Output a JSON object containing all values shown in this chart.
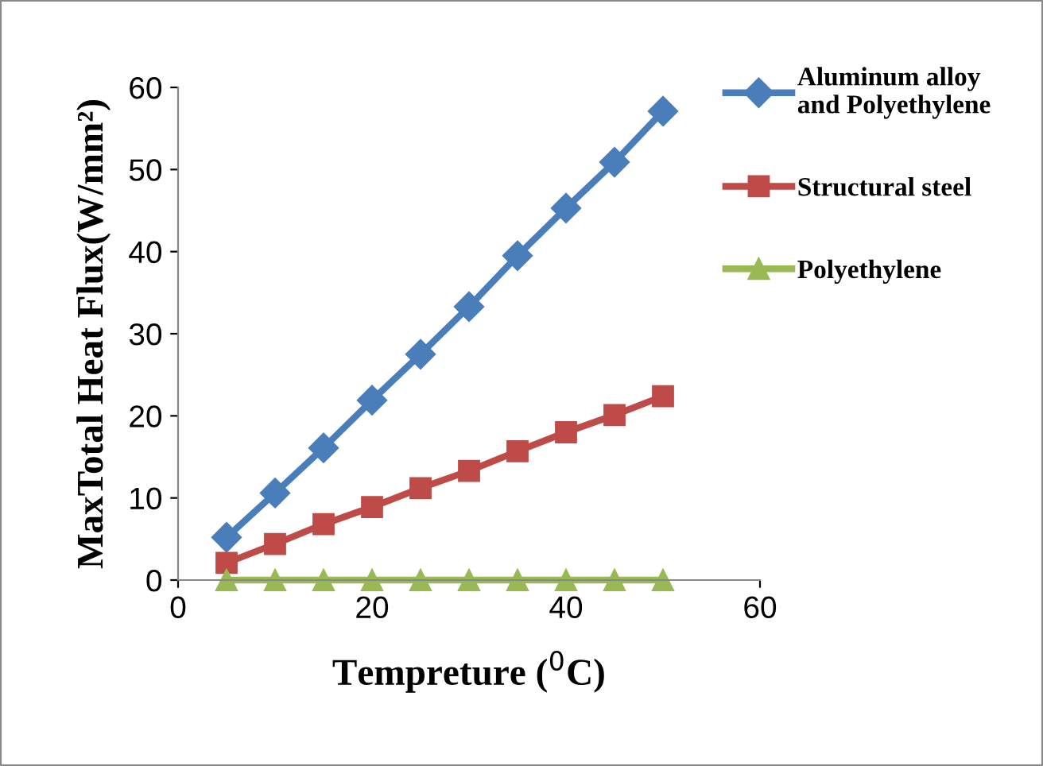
{
  "chart_data": {
    "type": "line",
    "xlabel": "Tempreture ($^{0}$C)",
    "ylabel": "MaxTotal Heat Flux(W/mm²)",
    "x": [
      5,
      10,
      15,
      20,
      25,
      30,
      35,
      40,
      45,
      50
    ],
    "series": [
      {
        "name": "Aluminum alloy\nand Polyethylene",
        "color": "#4a7ebb",
        "marker": "diamond",
        "values": [
          5.2,
          10.6,
          16.1,
          21.9,
          27.5,
          33.3,
          39.5,
          45.3,
          50.9,
          57.1
        ]
      },
      {
        "name": "Structural steel",
        "color": "#be4b48",
        "marker": "square",
        "values": [
          2.1,
          4.4,
          6.8,
          8.9,
          11.2,
          13.3,
          15.7,
          18.0,
          20.1,
          22.4
        ]
      },
      {
        "name": "Polyethylene",
        "color": "#98b954",
        "marker": "triangle",
        "values": [
          0,
          0,
          0,
          0,
          0,
          0,
          0,
          0,
          0,
          0
        ]
      }
    ],
    "xlim": [
      0,
      60
    ],
    "xticks": [
      0,
      20,
      40,
      60
    ],
    "ylim": [
      0,
      60
    ],
    "yticks": [
      0,
      10,
      20,
      30,
      40,
      50,
      60
    ],
    "grid": false,
    "legend": "top right",
    "line_style": "solid"
  }
}
